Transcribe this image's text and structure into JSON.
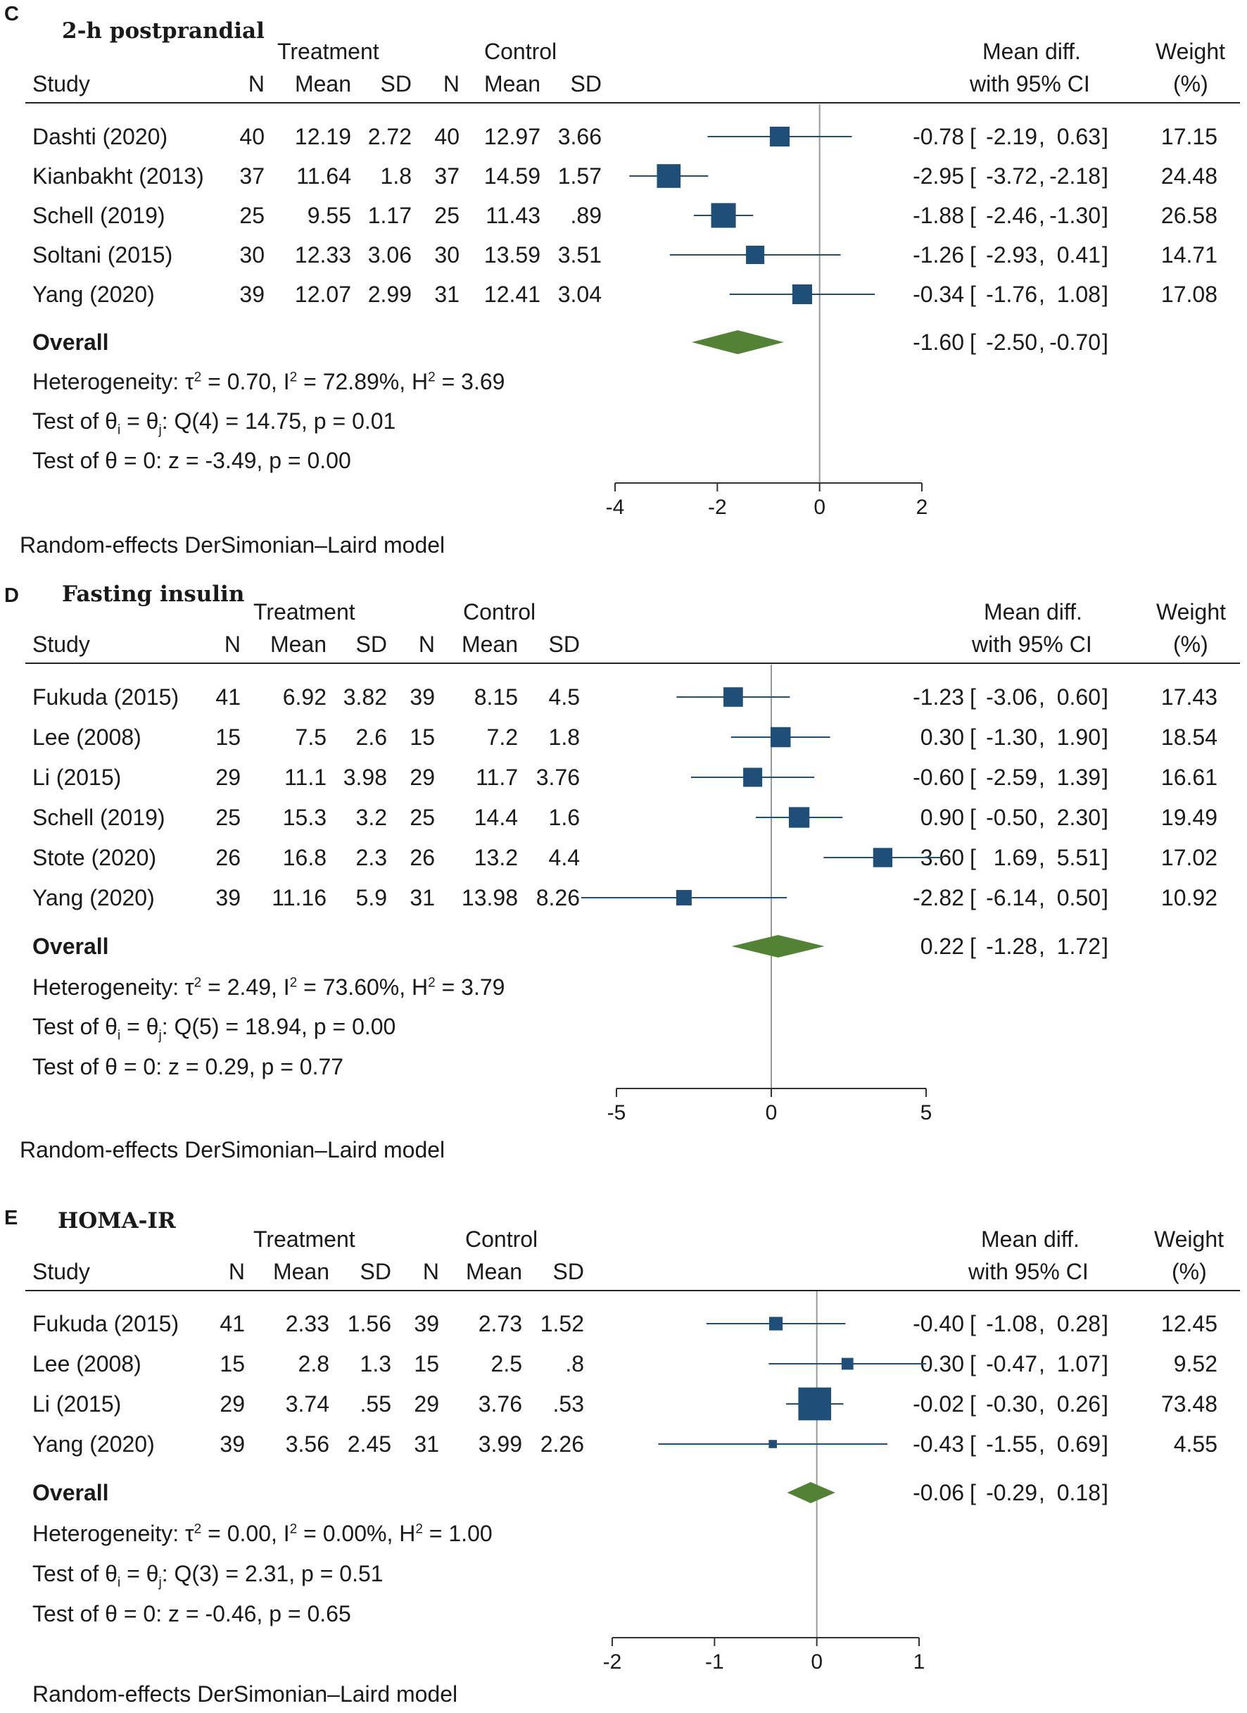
{
  "panels": [
    {
      "letter": "C",
      "title": "2-h postprandial",
      "headers": {
        "treatment": "Treatment",
        "control": "Control",
        "study": "Study",
        "n": "N",
        "mean": "Mean",
        "sd": "SD",
        "md_line1": "Mean diff.",
        "md_line2": "with 95% CI",
        "w_line1": "Weight",
        "w_line2": "(%)"
      },
      "rows": [
        {
          "study": "Dashti (2020)",
          "tn": "40",
          "tm": "12.19",
          "tsd": "2.72",
          "cn": "40",
          "cm": "12.97",
          "csd": "3.66",
          "md": "-0.78",
          "lo": "-2.19",
          "hi": "0.63",
          "w": "17.15"
        },
        {
          "study": "Kianbakht (2013)",
          "tn": "37",
          "tm": "11.64",
          "tsd": "1.8",
          "cn": "37",
          "cm": "14.59",
          "csd": "1.57",
          "md": "-2.95",
          "lo": "-3.72",
          "hi": "-2.18",
          "w": "24.48"
        },
        {
          "study": "Schell (2019)",
          "tn": "25",
          "tm": "9.55",
          "tsd": "1.17",
          "cn": "25",
          "cm": "11.43",
          "csd": ".89",
          "md": "-1.88",
          "lo": "-2.46",
          "hi": "-1.30",
          "w": "26.58"
        },
        {
          "study": "Soltani (2015)",
          "tn": "30",
          "tm": "12.33",
          "tsd": "3.06",
          "cn": "30",
          "cm": "13.59",
          "csd": "3.51",
          "md": "-1.26",
          "lo": "-2.93",
          "hi": "0.41",
          "w": "14.71"
        },
        {
          "study": "Yang (2020)",
          "tn": "39",
          "tm": "12.07",
          "tsd": "2.99",
          "cn": "31",
          "cm": "12.41",
          "csd": "3.04",
          "md": "-0.34",
          "lo": "-1.76",
          "hi": "1.08",
          "w": "17.08"
        }
      ],
      "overall": {
        "label": "Overall",
        "md": "-1.60",
        "lo": "-2.50",
        "hi": "-0.70"
      },
      "stats": {
        "tau2": "0.70",
        "i2": "72.89%",
        "h2": "3.69",
        "q": "Q(4) = 14.75, p = 0.01",
        "z": "z = -3.49, p = 0.00"
      },
      "footer": "Random-effects DerSimonian–Laird model"
    },
    {
      "letter": "D",
      "title": "Fasting insulin",
      "headers": {
        "treatment": "Treatment",
        "control": "Control",
        "study": "Study",
        "n": "N",
        "mean": "Mean",
        "sd": "SD",
        "md_line1": "Mean diff.",
        "md_line2": "with 95% CI",
        "w_line1": "Weight",
        "w_line2": "(%)"
      },
      "rows": [
        {
          "study": "Fukuda (2015)",
          "tn": "41",
          "tm": "6.92",
          "tsd": "3.82",
          "cn": "39",
          "cm": "8.15",
          "csd": "4.5",
          "md": "-1.23",
          "lo": "-3.06",
          "hi": "0.60",
          "w": "17.43"
        },
        {
          "study": "Lee (2008)",
          "tn": "15",
          "tm": "7.5",
          "tsd": "2.6",
          "cn": "15",
          "cm": "7.2",
          "csd": "1.8",
          "md": "0.30",
          "lo": "-1.30",
          "hi": "1.90",
          "w": "18.54"
        },
        {
          "study": "Li (2015)",
          "tn": "29",
          "tm": "11.1",
          "tsd": "3.98",
          "cn": "29",
          "cm": "11.7",
          "csd": "3.76",
          "md": "-0.60",
          "lo": "-2.59",
          "hi": "1.39",
          "w": "16.61"
        },
        {
          "study": "Schell (2019)",
          "tn": "25",
          "tm": "15.3",
          "tsd": "3.2",
          "cn": "25",
          "cm": "14.4",
          "csd": "1.6",
          "md": "0.90",
          "lo": "-0.50",
          "hi": "2.30",
          "w": "19.49"
        },
        {
          "study": "Stote (2020)",
          "tn": "26",
          "tm": "16.8",
          "tsd": "2.3",
          "cn": "26",
          "cm": "13.2",
          "csd": "4.4",
          "md": "3.60",
          "lo": "1.69",
          "hi": "5.51",
          "w": "17.02"
        },
        {
          "study": "Yang (2020)",
          "tn": "39",
          "tm": "11.16",
          "tsd": "5.9",
          "cn": "31",
          "cm": "13.98",
          "csd": "8.26",
          "md": "-2.82",
          "lo": "-6.14",
          "hi": "0.50",
          "w": "10.92"
        }
      ],
      "overall": {
        "label": "Overall",
        "md": "0.22",
        "lo": "-1.28",
        "hi": "1.72"
      },
      "stats": {
        "tau2": "2.49",
        "i2": "73.60%",
        "h2": "3.79",
        "q": "Q(5) = 18.94, p = 0.00",
        "z": "z = 0.29, p = 0.77"
      },
      "footer": "Random-effects DerSimonian–Laird model"
    },
    {
      "letter": "E",
      "title": "HOMA-IR",
      "headers": {
        "treatment": "Treatment",
        "control": "Control",
        "study": "Study",
        "n": "N",
        "mean": "Mean",
        "sd": "SD",
        "md_line1": "Mean diff.",
        "md_line2": "with 95% CI",
        "w_line1": "Weight",
        "w_line2": "(%)"
      },
      "rows": [
        {
          "study": "Fukuda (2015)",
          "tn": "41",
          "tm": "2.33",
          "tsd": "1.56",
          "cn": "39",
          "cm": "2.73",
          "csd": "1.52",
          "md": "-0.40",
          "lo": "-1.08",
          "hi": "0.28",
          "w": "12.45"
        },
        {
          "study": "Lee (2008)",
          "tn": "15",
          "tm": "2.8",
          "tsd": "1.3",
          "cn": "15",
          "cm": "2.5",
          "csd": ".8",
          "md": "0.30",
          "lo": "-0.47",
          "hi": "1.07",
          "w": "9.52"
        },
        {
          "study": "Li (2015)",
          "tn": "29",
          "tm": "3.74",
          "tsd": ".55",
          "cn": "29",
          "cm": "3.76",
          "csd": ".53",
          "md": "-0.02",
          "lo": "-0.30",
          "hi": "0.26",
          "w": "73.48"
        },
        {
          "study": "Yang (2020)",
          "tn": "39",
          "tm": "3.56",
          "tsd": "2.45",
          "cn": "31",
          "cm": "3.99",
          "csd": "2.26",
          "md": "-0.43",
          "lo": "-1.55",
          "hi": "0.69",
          "w": "4.55"
        }
      ],
      "overall": {
        "label": "Overall",
        "md": "-0.06",
        "lo": "-0.29",
        "hi": "0.18"
      },
      "stats": {
        "tau2": "0.00",
        "i2": "0.00%",
        "h2": "1.00",
        "q": "Q(3) = 2.31, p = 0.51",
        "z": "z = -0.46, p = 0.65"
      },
      "footer": "Random-effects DerSimonian–Laird model"
    }
  ],
  "colors": {
    "square": "#1f4e79",
    "ci_line": "#1f4e79",
    "diamond": "#548235",
    "ref_line": "#999999",
    "axis": "#333333"
  },
  "chart_data": [
    {
      "type": "forest",
      "title": "2-h postprandial",
      "xlim": [
        -4,
        2
      ],
      "xticks": [
        -4,
        -2,
        0,
        2
      ],
      "categories": [
        "Dashti (2020)",
        "Kianbakht (2013)",
        "Schell (2019)",
        "Soltani (2015)",
        "Yang (2020)"
      ],
      "values": [
        -0.78,
        -2.95,
        -1.88,
        -1.26,
        -0.34
      ],
      "ci_low": [
        -2.19,
        -3.72,
        -2.46,
        -2.93,
        -1.76
      ],
      "ci_high": [
        0.63,
        -2.18,
        -1.3,
        0.41,
        1.08
      ],
      "weights": [
        17.15,
        24.48,
        26.58,
        14.71,
        17.08
      ],
      "overall": {
        "value": -1.6,
        "ci_low": -2.5,
        "ci_high": -0.7
      }
    },
    {
      "type": "forest",
      "title": "Fasting insulin",
      "xlim": [
        -5,
        5
      ],
      "xticks": [
        -5,
        0,
        5
      ],
      "categories": [
        "Fukuda (2015)",
        "Lee (2008)",
        "Li (2015)",
        "Schell (2019)",
        "Stote (2020)",
        "Yang (2020)"
      ],
      "values": [
        -1.23,
        0.3,
        -0.6,
        0.9,
        3.6,
        -2.82
      ],
      "ci_low": [
        -3.06,
        -1.3,
        -2.59,
        -0.5,
        1.69,
        -6.14
      ],
      "ci_high": [
        0.6,
        1.9,
        1.39,
        2.3,
        5.51,
        0.5
      ],
      "weights": [
        17.43,
        18.54,
        16.61,
        19.49,
        17.02,
        10.92
      ],
      "overall": {
        "value": 0.22,
        "ci_low": -1.28,
        "ci_high": 1.72
      }
    },
    {
      "type": "forest",
      "title": "HOMA-IR",
      "xlim": [
        -2,
        1
      ],
      "xticks": [
        -2,
        -1,
        0,
        1
      ],
      "categories": [
        "Fukuda (2015)",
        "Lee (2008)",
        "Li (2015)",
        "Yang (2020)"
      ],
      "values": [
        -0.4,
        0.3,
        -0.02,
        -0.43
      ],
      "ci_low": [
        -1.08,
        -0.47,
        -0.3,
        -1.55
      ],
      "ci_high": [
        0.28,
        1.07,
        0.26,
        0.69
      ],
      "weights": [
        12.45,
        9.52,
        73.48,
        4.55
      ],
      "overall": {
        "value": -0.06,
        "ci_low": -0.29,
        "ci_high": 0.18
      }
    }
  ]
}
